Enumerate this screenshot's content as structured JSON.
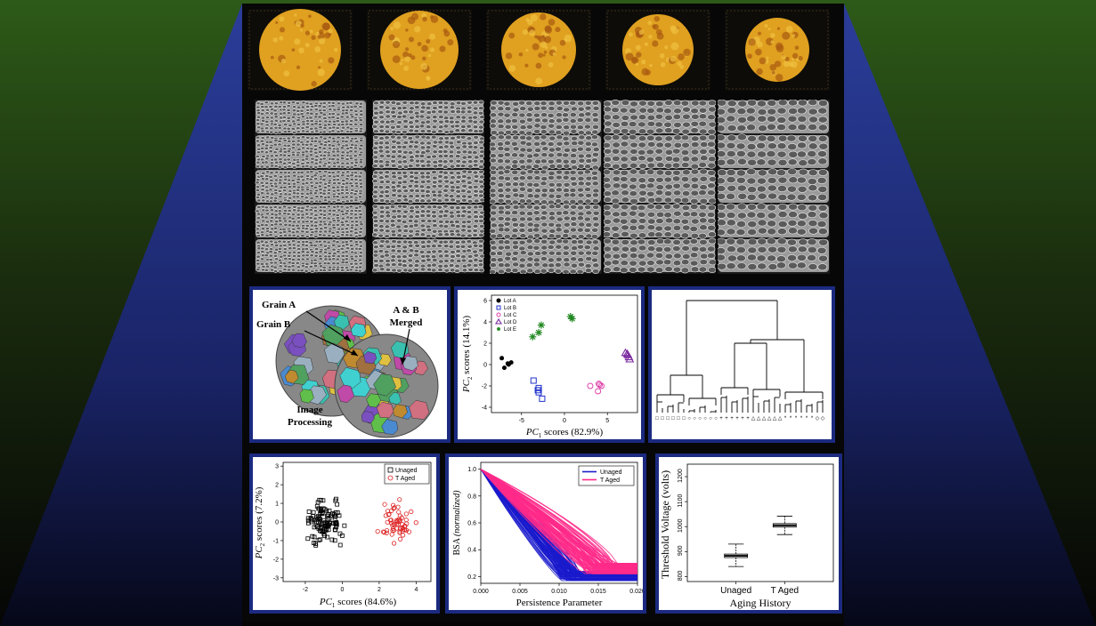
{
  "colors": {
    "frame_blue": "#1b2a80",
    "light_beam_blue": "#2a3aa8",
    "side_green": "#2d5a18",
    "thumbnail_orange": "#e0a020",
    "lot_b": "#2233cc",
    "lot_c": "#dd44aa",
    "lot_d_purple": "#7a2aa0",
    "lot_e_green": "#228822",
    "tage_red": "#dd2222",
    "tage_pink": "#ff2a8a"
  },
  "image_processing": {
    "grain_a": "Grain A",
    "grain_b": "Grain B",
    "merged_line1": "A & B",
    "merged_line2": "Merged",
    "caption_line1": "Image",
    "caption_line2": "Processing"
  },
  "pca_lots": {
    "xlabel_prefix": "PC",
    "xlabel_sub": "1",
    "xlabel_suffix": " scores (82.9%)",
    "ylabel_prefix": "PC",
    "ylabel_sub": "2",
    "ylabel_suffix": " scores (14.1%)",
    "xticks": [
      "-5",
      "0",
      "5"
    ],
    "yticks": [
      "6",
      "4",
      "2",
      "0",
      "-2",
      "-4"
    ],
    "legend": [
      "Lot A",
      "Lot B",
      "Lot C",
      "Lot D",
      "Lot E"
    ]
  },
  "pca_aging": {
    "xlabel_prefix": "PC",
    "xlabel_sub": "1",
    "xlabel_suffix": " scores (84.6%)",
    "ylabel_prefix": "PC",
    "ylabel_sub": "2",
    "ylabel_suffix": " scores (7.2%)",
    "xticks": [
      "-2",
      "0",
      "2",
      "4"
    ],
    "yticks": [
      "3",
      "2",
      "1",
      "0",
      "-1",
      "-2",
      "-3"
    ],
    "legend": [
      "Unaged",
      "T Aged"
    ]
  },
  "persistence": {
    "xlabel": "Persistence Parameter",
    "ylabel_prefix": "BSA ",
    "ylabel_italic": "(normalized)",
    "xticks": [
      "0.000",
      "0.005",
      "0.010",
      "0.015",
      "0.020"
    ],
    "yticks": [
      "1.0",
      "0.8",
      "0.6",
      "0.4",
      "0.2"
    ],
    "legend": [
      "Unaged",
      "T Aged"
    ]
  },
  "boxplot": {
    "xlabel": "Aging History",
    "ylabel": "Threshold Voltage (volts)",
    "categories": [
      "Unaged",
      "T Aged"
    ],
    "yticks": [
      "1200",
      "1100",
      "1000",
      "900",
      "800"
    ]
  },
  "chart_data": [
    {
      "type": "scatter",
      "xlabel": "PC1 scores (82.9%)",
      "ylabel": "PC2 scores (14.1%)",
      "xlim": [
        -8.5,
        8.5
      ],
      "ylim": [
        -4.5,
        6.5
      ],
      "series": [
        {
          "name": "Lot A",
          "marker": "circle",
          "color": "#000000",
          "points": [
            [
              -7.3,
              0.6
            ],
            [
              -6.6,
              0.1
            ],
            [
              -6.2,
              0.2
            ],
            [
              -7.0,
              -0.3
            ],
            [
              -6.5,
              0.0
            ]
          ]
        },
        {
          "name": "Lot B",
          "marker": "square",
          "color": "#2233cc",
          "points": [
            [
              -3.6,
              -1.5
            ],
            [
              -3.0,
              -2.2
            ],
            [
              -3.0,
              -2.6
            ],
            [
              -2.6,
              -3.2
            ],
            [
              -3.1,
              -2.4
            ]
          ]
        },
        {
          "name": "Lot C",
          "marker": "circle-open",
          "color": "#dd44aa",
          "points": [
            [
              3.0,
              -2.0
            ],
            [
              4.0,
              -1.8
            ],
            [
              4.3,
              -2.0
            ],
            [
              3.9,
              -2.5
            ],
            [
              4.1,
              -1.9
            ]
          ]
        },
        {
          "name": "Lot D",
          "marker": "triangle",
          "color": "#7a2aa0",
          "points": [
            [
              7.1,
              1.1
            ],
            [
              7.5,
              0.7
            ],
            [
              7.4,
              0.9
            ],
            [
              7.6,
              0.5
            ],
            [
              7.3,
              1.0
            ]
          ]
        },
        {
          "name": "Lot E",
          "marker": "star",
          "color": "#228822",
          "points": [
            [
              -3.7,
              2.6
            ],
            [
              -3.0,
              3.0
            ],
            [
              -2.7,
              3.7
            ],
            [
              0.7,
              4.5
            ],
            [
              0.9,
              4.3
            ]
          ]
        }
      ]
    },
    {
      "type": "scatter",
      "xlabel": "PC1 scores (84.6%)",
      "ylabel": "PC2 scores (7.2%)",
      "xlim": [
        -3.2,
        4.8
      ],
      "ylim": [
        -3.2,
        3.2
      ],
      "series": [
        {
          "name": "Unaged",
          "marker": "square-open",
          "color": "#000000",
          "count": 110,
          "center": [
            -1.0,
            0.0
          ],
          "spread": [
            0.7,
            0.75
          ]
        },
        {
          "name": "T Aged",
          "marker": "circle-open",
          "color": "#dd2222",
          "count": 60,
          "center": [
            3.0,
            0.0
          ],
          "spread": [
            0.6,
            0.7
          ]
        }
      ]
    },
    {
      "type": "line",
      "xlabel": "Persistence Parameter",
      "ylabel": "BSA (normalized)",
      "xlim": [
        0,
        0.02
      ],
      "ylim": [
        0.15,
        1.05
      ],
      "series": [
        {
          "name": "Unaged",
          "color": "#1a1acc",
          "curves": 90,
          "end_x": [
            0.01,
            0.013
          ],
          "floor": [
            0.17,
            0.24
          ]
        },
        {
          "name": "T Aged",
          "color": "#ff2a8a",
          "curves": 90,
          "end_x": [
            0.013,
            0.0175
          ],
          "floor": [
            0.22,
            0.3
          ]
        }
      ]
    },
    {
      "type": "box",
      "xlabel": "Aging History",
      "ylabel": "Threshold Voltage (volts)",
      "ylim": [
        780,
        1250
      ],
      "categories": [
        "Unaged",
        "T Aged"
      ],
      "boxes": [
        {
          "min": 840,
          "q1": 876,
          "median": 883,
          "q3": 890,
          "max": 930
        },
        {
          "min": 968,
          "q1": 998,
          "median": 1005,
          "q3": 1012,
          "max": 1042
        }
      ]
    }
  ]
}
